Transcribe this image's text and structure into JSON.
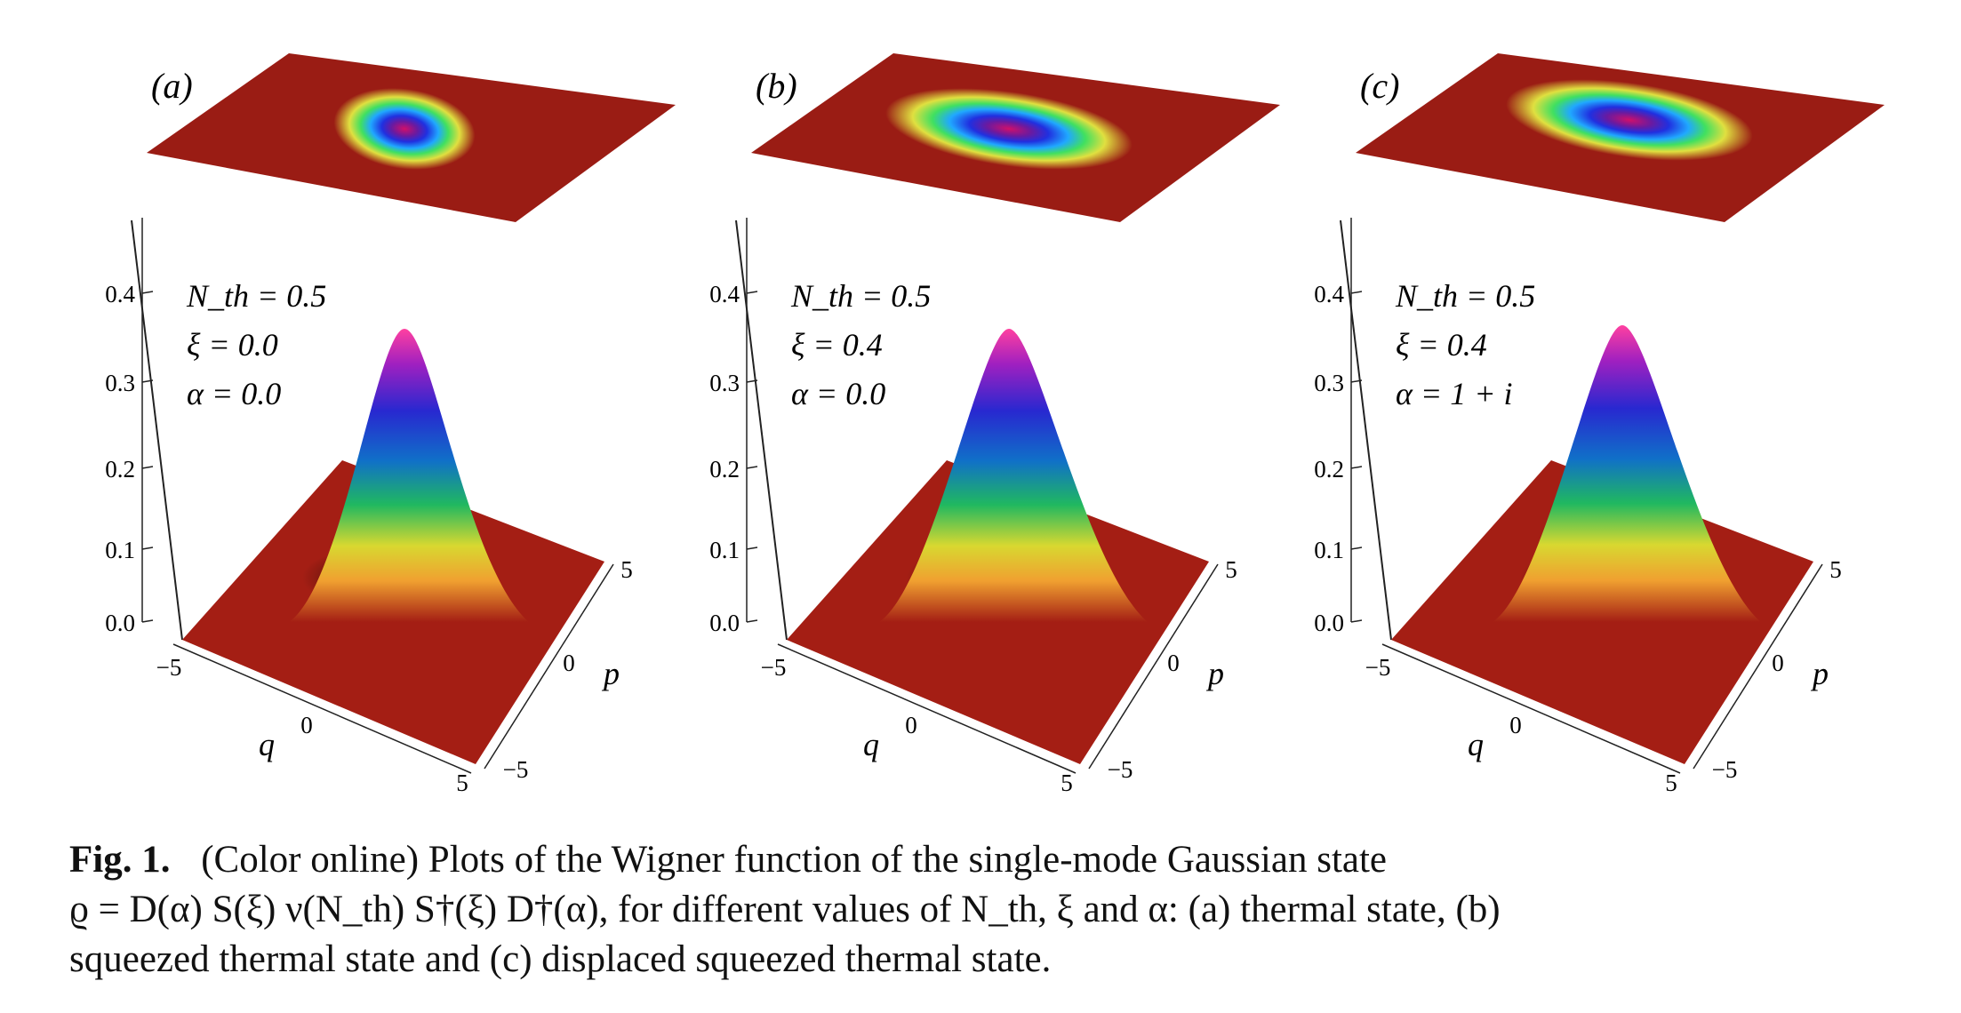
{
  "figure": {
    "panels": [
      {
        "id": "a",
        "label": "(a)",
        "annotations": [
          "N_th = 0.5",
          "ξ = 0.0",
          "α = 0.0"
        ],
        "squeeze": 0.0,
        "displacement": [
          0,
          0
        ]
      },
      {
        "id": "b",
        "label": "(b)",
        "annotations": [
          "N_th = 0.5",
          "ξ = 0.4",
          "α = 0.0"
        ],
        "squeeze": 0.4,
        "displacement": [
          0,
          0
        ]
      },
      {
        "id": "c",
        "label": "(c)",
        "annotations": [
          "N_th = 0.5",
          "ξ = 0.4",
          "α = 1 + i"
        ],
        "squeeze": 0.4,
        "displacement": [
          1,
          1
        ]
      }
    ],
    "z_ticks": [
      "0.0",
      "0.1",
      "0.2",
      "0.3",
      "0.4"
    ],
    "q_ticks": [
      "−5",
      "0",
      "5"
    ],
    "p_ticks": [
      "−5",
      "0",
      "5"
    ],
    "q_label": "q",
    "p_label": "p"
  },
  "caption": {
    "fig_label": "Fig. 1.",
    "line1": "(Color online) Plots of the Wigner function of the single-mode Gaussian state",
    "line2": "ϱ = D(α) S(ξ) ν(N_th) S†(ξ) D†(α), for different values of N_th, ξ and α: (a) thermal state, (b)",
    "line3": "squeezed thermal state and (c) displaced squeezed thermal state."
  }
}
